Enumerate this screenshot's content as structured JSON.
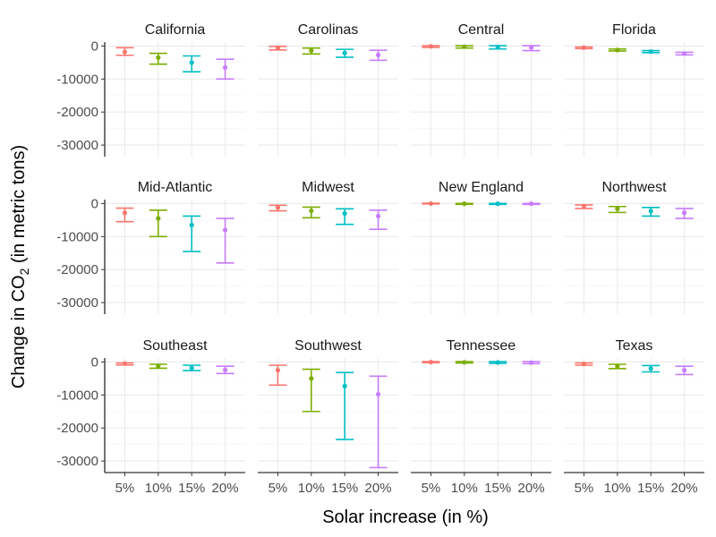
{
  "chart_data": {
    "type": "errorbar",
    "xlabel": "Solar increase (in %)",
    "ylabel_parts": [
      "Change in CO",
      "2",
      " (in metric tons)"
    ],
    "categories": [
      "5%",
      "10%",
      "15%",
      "20%"
    ],
    "ylim": [
      -33500,
      1200
    ],
    "yticks": [
      0,
      -10000,
      -20000,
      -30000
    ],
    "ytick_labels": [
      "0",
      "-10000",
      "-20000",
      "-30000"
    ],
    "colors": [
      "#F8766D",
      "#7CAE00",
      "#00BFC4",
      "#C77CFF"
    ],
    "legend": "none",
    "grid": true,
    "panels": [
      {
        "name": "California",
        "points": [
          [
            -1800,
            -500,
            -2800
          ],
          [
            -3500,
            -2200,
            -5500
          ],
          [
            -5000,
            -3000,
            -7800
          ],
          [
            -6500,
            -4000,
            -10000
          ]
        ]
      },
      {
        "name": "Carolinas",
        "points": [
          [
            -600,
            -100,
            -1200
          ],
          [
            -1400,
            -600,
            -2400
          ],
          [
            -2100,
            -1000,
            -3400
          ],
          [
            -2700,
            -1300,
            -4300
          ]
        ]
      },
      {
        "name": "Central",
        "points": [
          [
            -100,
            100,
            -400
          ],
          [
            -200,
            100,
            -600
          ],
          [
            -300,
            100,
            -900
          ],
          [
            -400,
            100,
            -1400
          ]
        ]
      },
      {
        "name": "Florida",
        "points": [
          [
            -500,
            -300,
            -800
          ],
          [
            -1200,
            -900,
            -1500
          ],
          [
            -1700,
            -1400,
            -2000
          ],
          [
            -2300,
            -1900,
            -2700
          ]
        ]
      },
      {
        "name": "Mid-Atlantic",
        "points": [
          [
            -2800,
            -1400,
            -5500
          ],
          [
            -4500,
            -2000,
            -10000
          ],
          [
            -6500,
            -3800,
            -14500
          ],
          [
            -8000,
            -4500,
            -18000
          ]
        ]
      },
      {
        "name": "Midwest",
        "points": [
          [
            -1200,
            -500,
            -2200
          ],
          [
            -2200,
            -1100,
            -4300
          ],
          [
            -3000,
            -1600,
            -6300
          ],
          [
            -3800,
            -2000,
            -7800
          ]
        ]
      },
      {
        "name": "New England",
        "points": [
          [
            0,
            100,
            -100
          ],
          [
            -50,
            50,
            -200
          ],
          [
            -50,
            50,
            -250
          ],
          [
            -50,
            50,
            -250
          ]
        ]
      },
      {
        "name": "Northwest",
        "points": [
          [
            -800,
            -400,
            -1500
          ],
          [
            -1600,
            -900,
            -2700
          ],
          [
            -2300,
            -1200,
            -3800
          ],
          [
            -2800,
            -1500,
            -4500
          ]
        ]
      },
      {
        "name": "Southeast",
        "points": [
          [
            -500,
            -300,
            -900
          ],
          [
            -1200,
            -700,
            -1900
          ],
          [
            -1800,
            -1000,
            -2600
          ],
          [
            -2400,
            -1300,
            -3500
          ]
        ]
      },
      {
        "name": "Southwest",
        "points": [
          [
            -2500,
            -1000,
            -7000
          ],
          [
            -5000,
            -2200,
            -15000
          ],
          [
            -7300,
            -3200,
            -23500
          ],
          [
            -9800,
            -4300,
            -32000
          ]
        ]
      },
      {
        "name": "Tennessee",
        "points": [
          [
            -50,
            100,
            -200
          ],
          [
            -100,
            100,
            -300
          ],
          [
            -150,
            100,
            -400
          ],
          [
            -200,
            100,
            -500
          ]
        ]
      },
      {
        "name": "Texas",
        "points": [
          [
            -600,
            -300,
            -1000
          ],
          [
            -1300,
            -700,
            -2000
          ],
          [
            -2000,
            -1100,
            -3000
          ],
          [
            -2500,
            -1300,
            -3800
          ]
        ]
      }
    ]
  }
}
